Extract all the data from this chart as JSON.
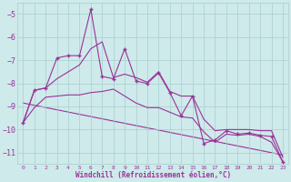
{
  "xlabel": "Windchill (Refroidissement éolien,°C)",
  "x_data": [
    0,
    1,
    2,
    3,
    4,
    5,
    6,
    7,
    8,
    9,
    10,
    11,
    12,
    13,
    14,
    15,
    16,
    17,
    18,
    19,
    20,
    21,
    22,
    23
  ],
  "y_main": [
    -9.7,
    -8.3,
    -8.2,
    -6.9,
    -6.8,
    -6.8,
    -4.8,
    -7.7,
    -7.8,
    -6.5,
    -7.9,
    -8.0,
    -7.55,
    -8.4,
    -9.4,
    -8.55,
    -10.6,
    -10.45,
    -10.05,
    -10.2,
    -10.15,
    -10.25,
    -10.3,
    -11.4
  ],
  "y_min": [
    -9.7,
    -9.05,
    -8.6,
    -8.55,
    -8.5,
    -8.5,
    -8.4,
    -8.35,
    -8.25,
    -8.55,
    -8.85,
    -9.05,
    -9.05,
    -9.25,
    -9.45,
    -9.5,
    -10.1,
    -10.55,
    -10.2,
    -10.25,
    -10.2,
    -10.3,
    -10.55,
    -11.4
  ],
  "y_max": [
    -9.7,
    -8.3,
    -8.2,
    -7.8,
    -7.5,
    -7.2,
    -6.5,
    -6.2,
    -7.75,
    -7.6,
    -7.75,
    -7.95,
    -7.5,
    -8.35,
    -8.55,
    -8.55,
    -9.55,
    -10.05,
    -10.0,
    -10.0,
    -10.0,
    -10.05,
    -10.05,
    -11.2
  ],
  "trend_x": [
    0,
    23
  ],
  "trend_y": [
    -8.85,
    -11.1
  ],
  "ylim": [
    -11.5,
    -4.5
  ],
  "xlim": [
    -0.5,
    23.5
  ],
  "yticks": [
    -5,
    -6,
    -7,
    -8,
    -9,
    -10,
    -11
  ],
  "xticks": [
    0,
    1,
    2,
    3,
    4,
    5,
    6,
    7,
    8,
    9,
    10,
    11,
    12,
    13,
    14,
    15,
    16,
    17,
    18,
    19,
    20,
    21,
    22,
    23
  ],
  "line_color": "#993399",
  "marker": "+",
  "bg_color": "#ceeaea",
  "grid_color": "#aacece"
}
